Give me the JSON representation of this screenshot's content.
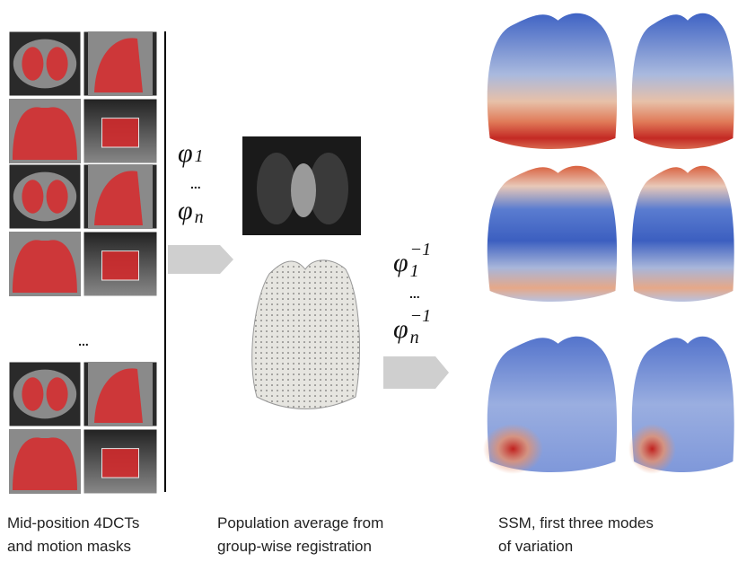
{
  "captions": [
    {
      "lines": [
        "Mid-position 4DCTs",
        "and motion masks"
      ]
    },
    {
      "lines": [
        "Population average from",
        "group-wise registration"
      ]
    },
    {
      "lines": [
        "SSM, first three modes",
        "of variation"
      ]
    }
  ],
  "panel_ellipsis": "...",
  "forward_transform": {
    "symbol": "φ",
    "first": "1",
    "ellipsis": "...",
    "last": "n"
  },
  "inverse_transform": {
    "symbol": "φ",
    "first": "1",
    "exponent": "−1",
    "ellipsis": "...",
    "last": "n"
  }
}
